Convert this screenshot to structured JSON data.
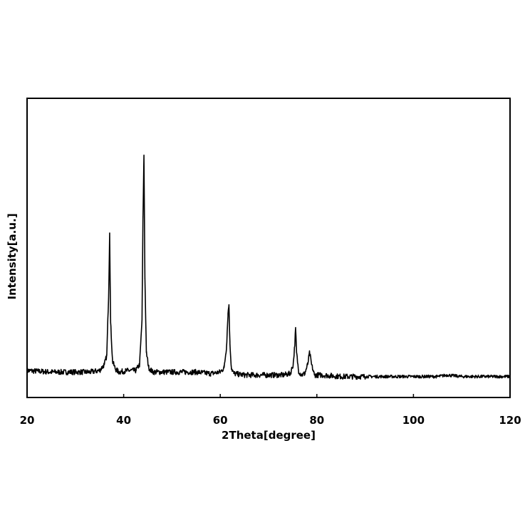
{
  "chart_data": {
    "type": "line",
    "title": "",
    "xlabel": "2Theta[degree]",
    "ylabel": "Intensity[a.u.]",
    "xlim": [
      20,
      120
    ],
    "ylim": [
      0,
      100
    ],
    "x_ticks": [
      20,
      40,
      60,
      80,
      100,
      120
    ],
    "x_tick_labels": [
      "20",
      "40",
      "60",
      "80",
      "100",
      "120"
    ],
    "grid": false,
    "legend": "none",
    "baseline": 9,
    "peaks": [
      {
        "x": 37.1,
        "y": 55
      },
      {
        "x": 44.2,
        "y": 81
      },
      {
        "x": 61.8,
        "y": 31
      },
      {
        "x": 75.6,
        "y": 23
      },
      {
        "x": 78.5,
        "y": 15
      }
    ],
    "series": [
      {
        "x": [
          20,
          25,
          30,
          33,
          35,
          36,
          36.5,
          36.9,
          37.1,
          37.3,
          37.7,
          38.3,
          39,
          41,
          42.5,
          43.3,
          43.8,
          44.0,
          44.2,
          44.4,
          44.7,
          45.2,
          46,
          50,
          55,
          58,
          60,
          60.8,
          61.3,
          61.6,
          61.8,
          62.0,
          62.3,
          62.8,
          65,
          70,
          73,
          74.5,
          75.1,
          75.4,
          75.6,
          75.8,
          76.2,
          76.8,
          77.5,
          78.1,
          78.5,
          78.9,
          79.5,
          81,
          85,
          90,
          95,
          100,
          105,
          107,
          110,
          115,
          120
        ],
        "y": [
          9,
          8.5,
          8.5,
          8.5,
          9,
          11,
          14,
          35,
          55,
          25,
          12,
          9.5,
          8.5,
          9,
          9,
          11,
          26,
          60,
          81,
          40,
          15,
          10,
          8.5,
          8.5,
          8.5,
          8,
          8.5,
          10,
          17,
          28,
          31,
          18,
          10,
          8,
          7.5,
          7.5,
          7.5,
          8,
          11,
          17,
          23,
          15,
          9,
          7.5,
          8,
          11,
          15,
          11,
          7.5,
          7.5,
          7,
          7,
          7,
          7,
          7,
          7.5,
          7,
          7,
          7
        ]
      }
    ]
  }
}
